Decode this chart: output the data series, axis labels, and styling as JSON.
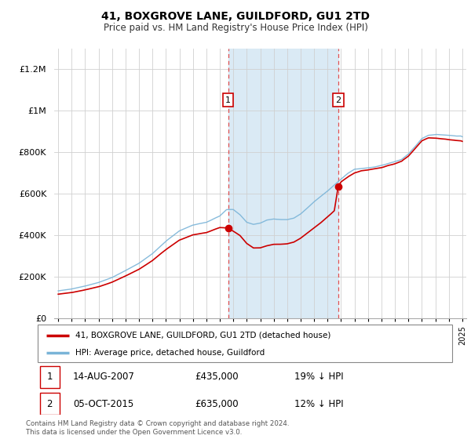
{
  "title": "41, BOXGROVE LANE, GUILDFORD, GU1 2TD",
  "subtitle": "Price paid vs. HM Land Registry's House Price Index (HPI)",
  "hpi_label": "HPI: Average price, detached house, Guildford",
  "property_label": "41, BOXGROVE LANE, GUILDFORD, GU1 2TD (detached house)",
  "transactions": [
    {
      "date": 2007.62,
      "price": 435000,
      "label": "1",
      "hpi_diff": "19% ↓ HPI",
      "date_str": "14-AUG-2007"
    },
    {
      "date": 2015.79,
      "price": 635000,
      "label": "2",
      "hpi_diff": "12% ↓ HPI",
      "date_str": "05-OCT-2015"
    }
  ],
  "footnote": "Contains HM Land Registry data © Crown copyright and database right 2024.\nThis data is licensed under the Open Government Licence v3.0.",
  "hpi_color": "#7ab4d8",
  "property_color": "#cc0000",
  "shade_color": "#daeaf5",
  "ylim_min": 0,
  "ylim_max": 1300000,
  "yticks": [
    0,
    200000,
    400000,
    600000,
    800000,
    1000000,
    1200000
  ],
  "xlim_min": 1994.7,
  "xlim_max": 2025.3,
  "background_color": "#ffffff",
  "grid_color": "#d0d0d0"
}
